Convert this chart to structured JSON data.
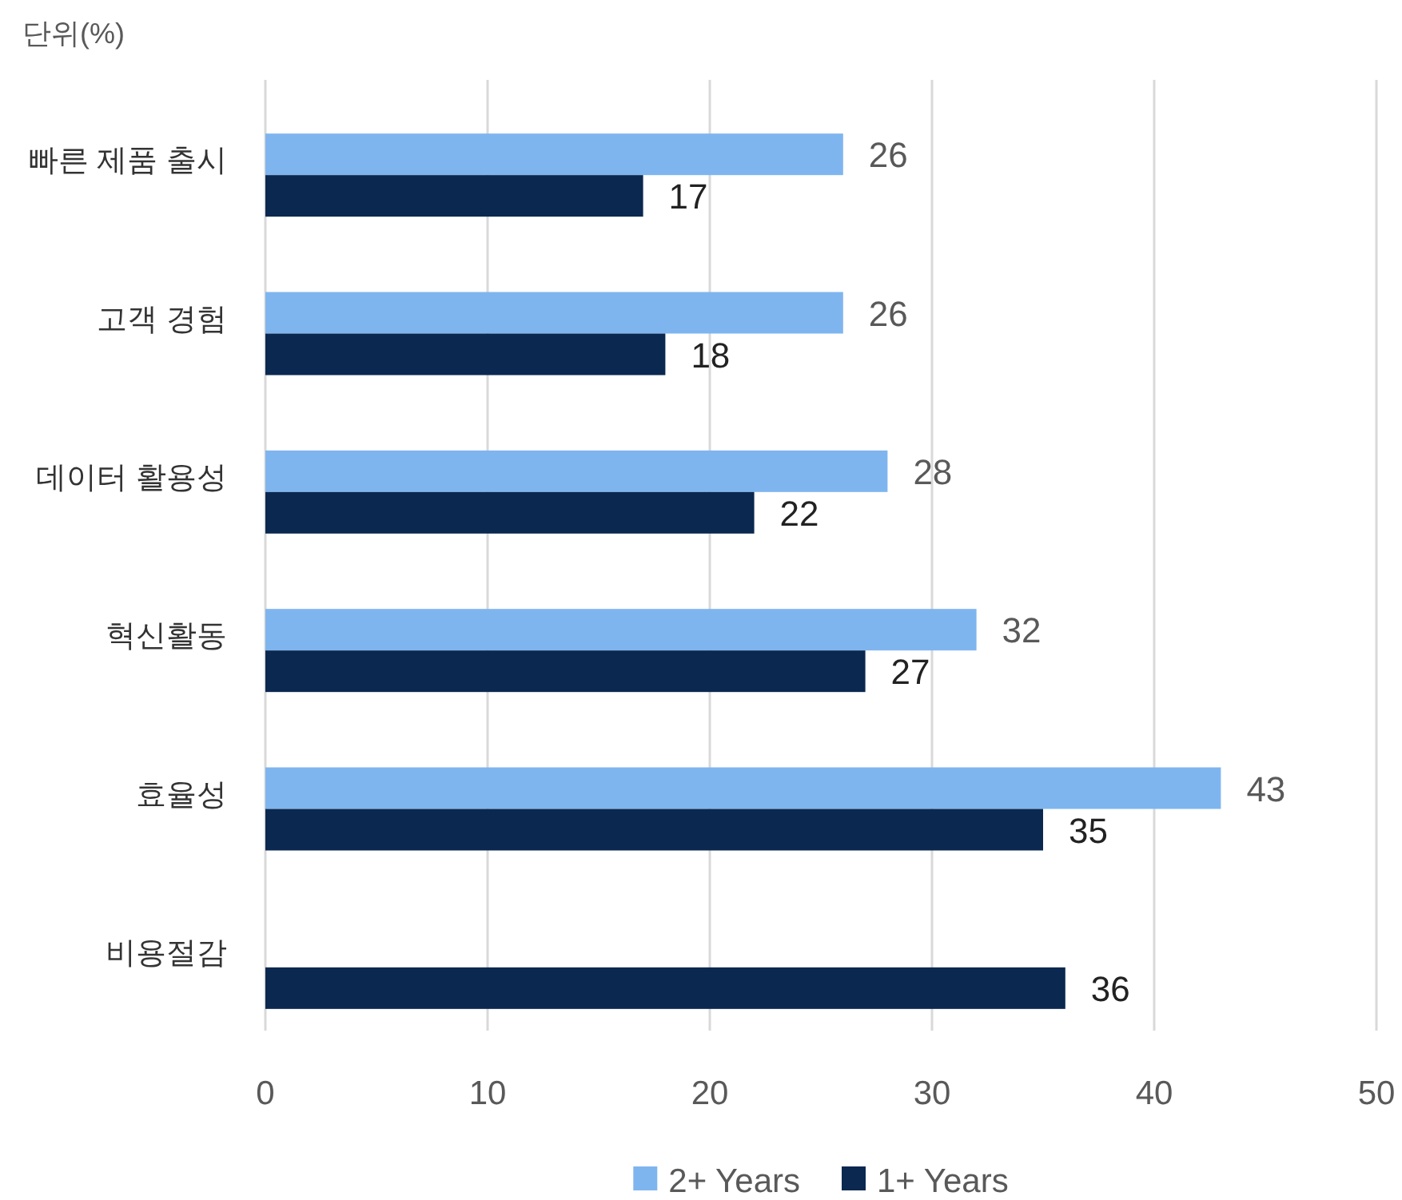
{
  "chart_data": {
    "type": "bar",
    "orientation": "horizontal",
    "annotations": [
      "단위(%)"
    ],
    "categories": [
      "빠른 제품 출시",
      "고객 경험",
      "데이터 활용성",
      "혁신활동",
      "효율성",
      "비용절감"
    ],
    "series": [
      {
        "name": "2+ Years",
        "color": "#7fb5ef",
        "values": [
          26,
          26,
          28,
          32,
          43,
          null
        ]
      },
      {
        "name": "1+ Years",
        "color": "#0b2850",
        "values": [
          17,
          18,
          22,
          27,
          35,
          36
        ]
      }
    ],
    "xlim": [
      0,
      50
    ],
    "xticks": [
      0,
      10,
      20,
      30,
      40,
      50
    ],
    "grid": "x",
    "legend": "bottom",
    "data_labels": true
  }
}
